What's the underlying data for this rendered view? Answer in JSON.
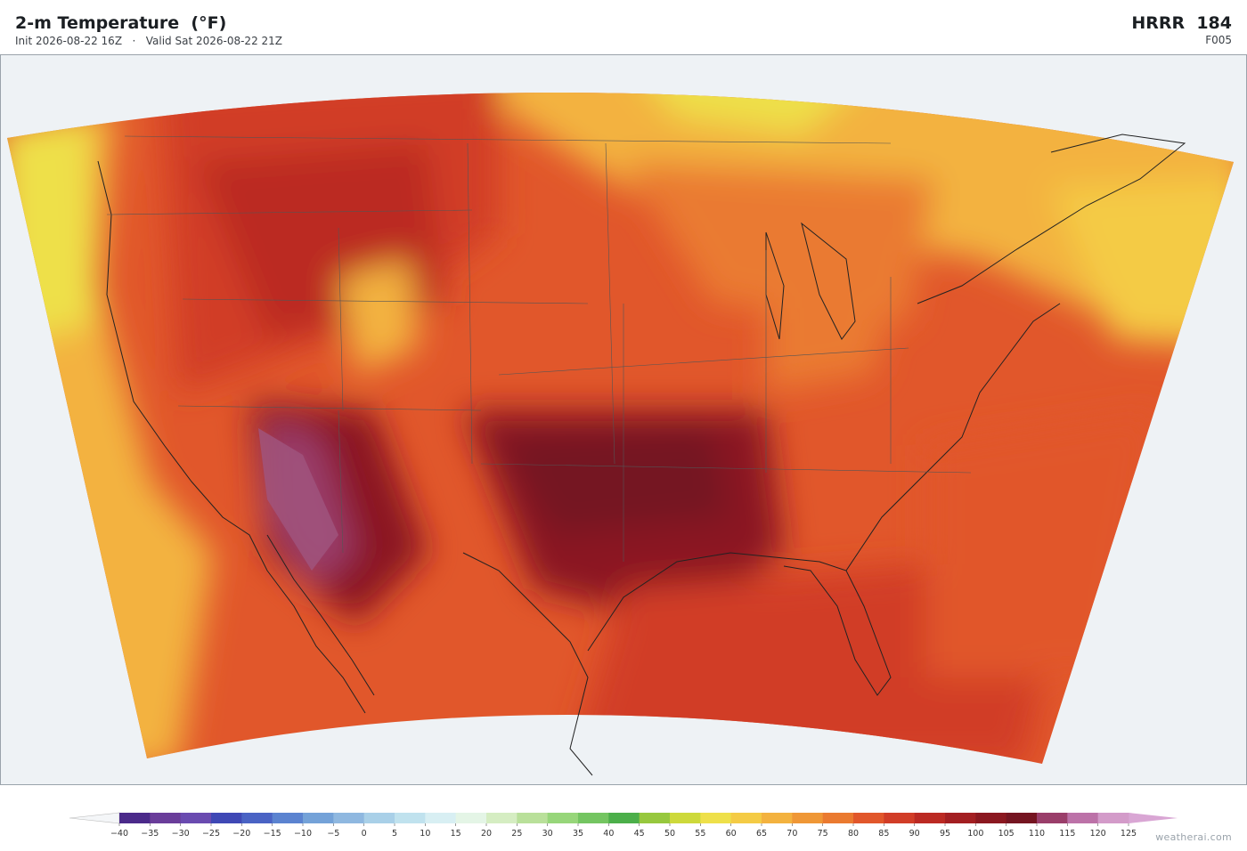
{
  "header": {
    "title": "2-m Temperature  (°F)",
    "subtitle": "Init 2026-08-22 16Z   ·   Valid Sat 2026-08-22 21Z",
    "model": "HRRR  184",
    "forecast_hour": "F005"
  },
  "colorbar": {
    "ticks": [
      {
        "value": -40,
        "label": "−40"
      },
      {
        "value": -35,
        "label": "−35"
      },
      {
        "value": -30,
        "label": "−30"
      },
      {
        "value": -25,
        "label": "−25"
      },
      {
        "value": -20,
        "label": "−20"
      },
      {
        "value": -15,
        "label": "−15"
      },
      {
        "value": -10,
        "label": "−10"
      },
      {
        "value": -5,
        "label": "−5"
      },
      0,
      5,
      10,
      15,
      20,
      25,
      30,
      35,
      40,
      45,
      50,
      55,
      60,
      65,
      70,
      75,
      80,
      85,
      90,
      95,
      100,
      105,
      110,
      115,
      120,
      125
    ],
    "colors": [
      "#4b2a8a",
      "#6a3d9a",
      "#6a4bb0",
      "#3f48b5",
      "#4a63c4",
      "#5b83d0",
      "#74a2d8",
      "#8fb8e0",
      "#a9d0e8",
      "#c0e2ee",
      "#d8eff3",
      "#e4f5e6",
      "#d5edc2",
      "#b9e09a",
      "#97d67a",
      "#74c561",
      "#4caf4a",
      "#97c83e",
      "#cdd93b",
      "#eee04a",
      "#f4cb45",
      "#f3b23f",
      "#ef9736",
      "#ea7a30",
      "#e1572b",
      "#d13d27",
      "#bb2a23",
      "#a31f22",
      "#8b1820",
      "#751521",
      "#9a3e6a",
      "#bc72a8",
      "#d39bc9"
    ],
    "under_color": "#f4f6f8",
    "over_color": "#d9a6d4"
  },
  "watermark": "weatherai.com"
}
